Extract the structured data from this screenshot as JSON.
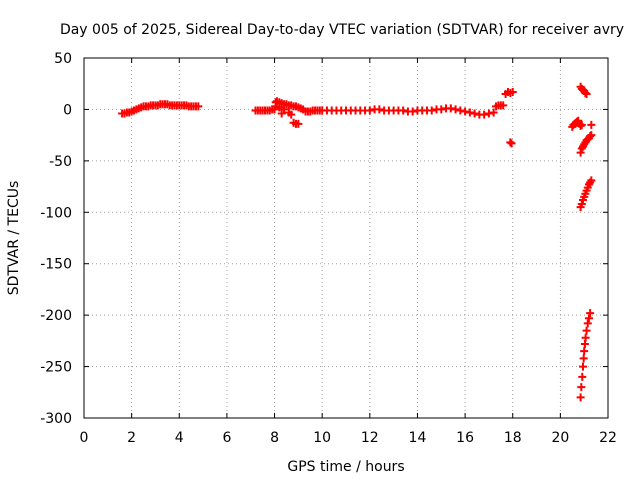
{
  "chart_data": {
    "type": "scatter",
    "title": "Day 005 of 2025, Sidereal Day-to-day VTEC variation (SDTVAR) for receiver avry",
    "xlabel": "GPS time / hours",
    "ylabel": "SDTVAR / TECUs",
    "xlim": [
      0,
      22
    ],
    "ylim": [
      -300,
      50
    ],
    "xticks": [
      0,
      2,
      4,
      6,
      8,
      10,
      12,
      14,
      16,
      18,
      20,
      22
    ],
    "yticks": [
      -300,
      -250,
      -200,
      -150,
      -100,
      -50,
      0,
      50
    ],
    "grid": true,
    "marker": "plus",
    "colors": {
      "series": "#ff0000"
    },
    "series": [
      {
        "points": [
          [
            1.6,
            -4
          ],
          [
            1.7,
            -4
          ],
          [
            1.8,
            -3
          ],
          [
            1.9,
            -3
          ],
          [
            2.0,
            -2
          ],
          [
            2.1,
            -1
          ],
          [
            2.2,
            0
          ],
          [
            2.3,
            1
          ],
          [
            2.4,
            2
          ],
          [
            2.5,
            3
          ],
          [
            2.6,
            3
          ],
          [
            2.7,
            3
          ],
          [
            2.8,
            4
          ],
          [
            2.9,
            4
          ],
          [
            3.0,
            4
          ],
          [
            3.1,
            4
          ],
          [
            3.2,
            5
          ],
          [
            3.3,
            5
          ],
          [
            3.4,
            5
          ],
          [
            3.5,
            5
          ],
          [
            3.6,
            4
          ],
          [
            3.7,
            4
          ],
          [
            3.8,
            4
          ],
          [
            3.9,
            4
          ],
          [
            4.0,
            4
          ],
          [
            4.1,
            4
          ],
          [
            4.2,
            4
          ],
          [
            4.3,
            4
          ],
          [
            4.4,
            3
          ],
          [
            4.5,
            3
          ],
          [
            4.6,
            3
          ],
          [
            4.7,
            3
          ],
          [
            4.8,
            3
          ],
          [
            7.2,
            -1
          ],
          [
            7.3,
            -1
          ],
          [
            7.4,
            -1
          ],
          [
            7.5,
            -1
          ],
          [
            7.6,
            -1
          ],
          [
            7.7,
            -1
          ],
          [
            7.8,
            -1
          ],
          [
            7.9,
            0
          ],
          [
            8.0,
            0
          ],
          [
            8.05,
            7
          ],
          [
            8.1,
            8
          ],
          [
            8.2,
            7
          ],
          [
            8.3,
            6
          ],
          [
            8.4,
            5
          ],
          [
            8.5,
            5
          ],
          [
            8.6,
            4
          ],
          [
            8.7,
            4
          ],
          [
            8.8,
            3
          ],
          [
            8.9,
            3
          ],
          [
            9.0,
            2
          ],
          [
            9.1,
            1
          ],
          [
            9.2,
            0
          ],
          [
            8.05,
            3
          ],
          [
            8.2,
            2
          ],
          [
            8.4,
            0
          ],
          [
            8.6,
            -3
          ],
          [
            8.7,
            -5
          ],
          [
            8.8,
            -13
          ],
          [
            8.9,
            -14
          ],
          [
            9.0,
            -14
          ],
          [
            8.3,
            -4
          ],
          [
            9.3,
            -2
          ],
          [
            9.4,
            -2
          ],
          [
            9.5,
            -2
          ],
          [
            9.6,
            -1
          ],
          [
            9.7,
            -1
          ],
          [
            9.8,
            -1
          ],
          [
            9.9,
            -1
          ],
          [
            10.0,
            -1
          ],
          [
            10.2,
            -1
          ],
          [
            10.4,
            -1
          ],
          [
            10.6,
            -1
          ],
          [
            10.8,
            -1
          ],
          [
            11.0,
            -1
          ],
          [
            11.2,
            -1
          ],
          [
            11.4,
            -1
          ],
          [
            11.6,
            -1
          ],
          [
            11.8,
            -1
          ],
          [
            12.0,
            -1
          ],
          [
            12.2,
            0
          ],
          [
            12.4,
            0
          ],
          [
            12.6,
            -1
          ],
          [
            12.8,
            -1
          ],
          [
            13.0,
            -1
          ],
          [
            13.2,
            -1
          ],
          [
            13.4,
            -1
          ],
          [
            13.6,
            -2
          ],
          [
            13.8,
            -2
          ],
          [
            14.0,
            -1
          ],
          [
            14.2,
            -1
          ],
          [
            14.4,
            -1
          ],
          [
            14.6,
            -1
          ],
          [
            14.8,
            0
          ],
          [
            15.0,
            0
          ],
          [
            15.2,
            1
          ],
          [
            15.4,
            1
          ],
          [
            15.6,
            0
          ],
          [
            15.8,
            -1
          ],
          [
            16.0,
            -2
          ],
          [
            16.2,
            -3
          ],
          [
            16.4,
            -4
          ],
          [
            16.6,
            -5
          ],
          [
            16.8,
            -5
          ],
          [
            17.0,
            -4
          ],
          [
            17.2,
            -3
          ],
          [
            17.3,
            3
          ],
          [
            17.4,
            4
          ],
          [
            17.5,
            4
          ],
          [
            17.6,
            4
          ],
          [
            17.7,
            15
          ],
          [
            17.8,
            17
          ],
          [
            17.9,
            16
          ],
          [
            18.0,
            17
          ],
          [
            17.9,
            -32
          ],
          [
            17.95,
            -33
          ],
          [
            20.5,
            -17
          ],
          [
            20.55,
            -15
          ],
          [
            20.6,
            -14
          ],
          [
            20.65,
            -13
          ],
          [
            20.7,
            -12
          ],
          [
            20.75,
            -11
          ],
          [
            20.8,
            -14
          ],
          [
            20.85,
            -16
          ],
          [
            20.9,
            -15
          ],
          [
            20.85,
            22
          ],
          [
            20.9,
            20
          ],
          [
            20.95,
            19
          ],
          [
            21.0,
            18
          ],
          [
            21.05,
            16
          ],
          [
            21.1,
            15
          ],
          [
            21.3,
            -15
          ],
          [
            20.85,
            -42
          ],
          [
            20.9,
            -38
          ],
          [
            20.95,
            -36
          ],
          [
            21.0,
            -34
          ],
          [
            21.05,
            -32
          ],
          [
            21.1,
            -30
          ],
          [
            21.15,
            -29
          ],
          [
            21.2,
            -28
          ],
          [
            21.25,
            -26
          ],
          [
            21.3,
            -25
          ],
          [
            20.85,
            -95
          ],
          [
            20.9,
            -92
          ],
          [
            20.95,
            -88
          ],
          [
            21.0,
            -85
          ],
          [
            21.05,
            -82
          ],
          [
            21.1,
            -79
          ],
          [
            21.15,
            -76
          ],
          [
            21.2,
            -73
          ],
          [
            21.25,
            -71
          ],
          [
            21.3,
            -69
          ],
          [
            20.85,
            -280
          ],
          [
            20.88,
            -270
          ],
          [
            20.92,
            -260
          ],
          [
            20.95,
            -250
          ],
          [
            20.98,
            -242
          ],
          [
            21.0,
            -235
          ],
          [
            21.03,
            -228
          ],
          [
            21.06,
            -222
          ],
          [
            21.1,
            -215
          ],
          [
            21.15,
            -208
          ],
          [
            21.2,
            -203
          ],
          [
            21.25,
            -198
          ]
        ]
      }
    ]
  }
}
